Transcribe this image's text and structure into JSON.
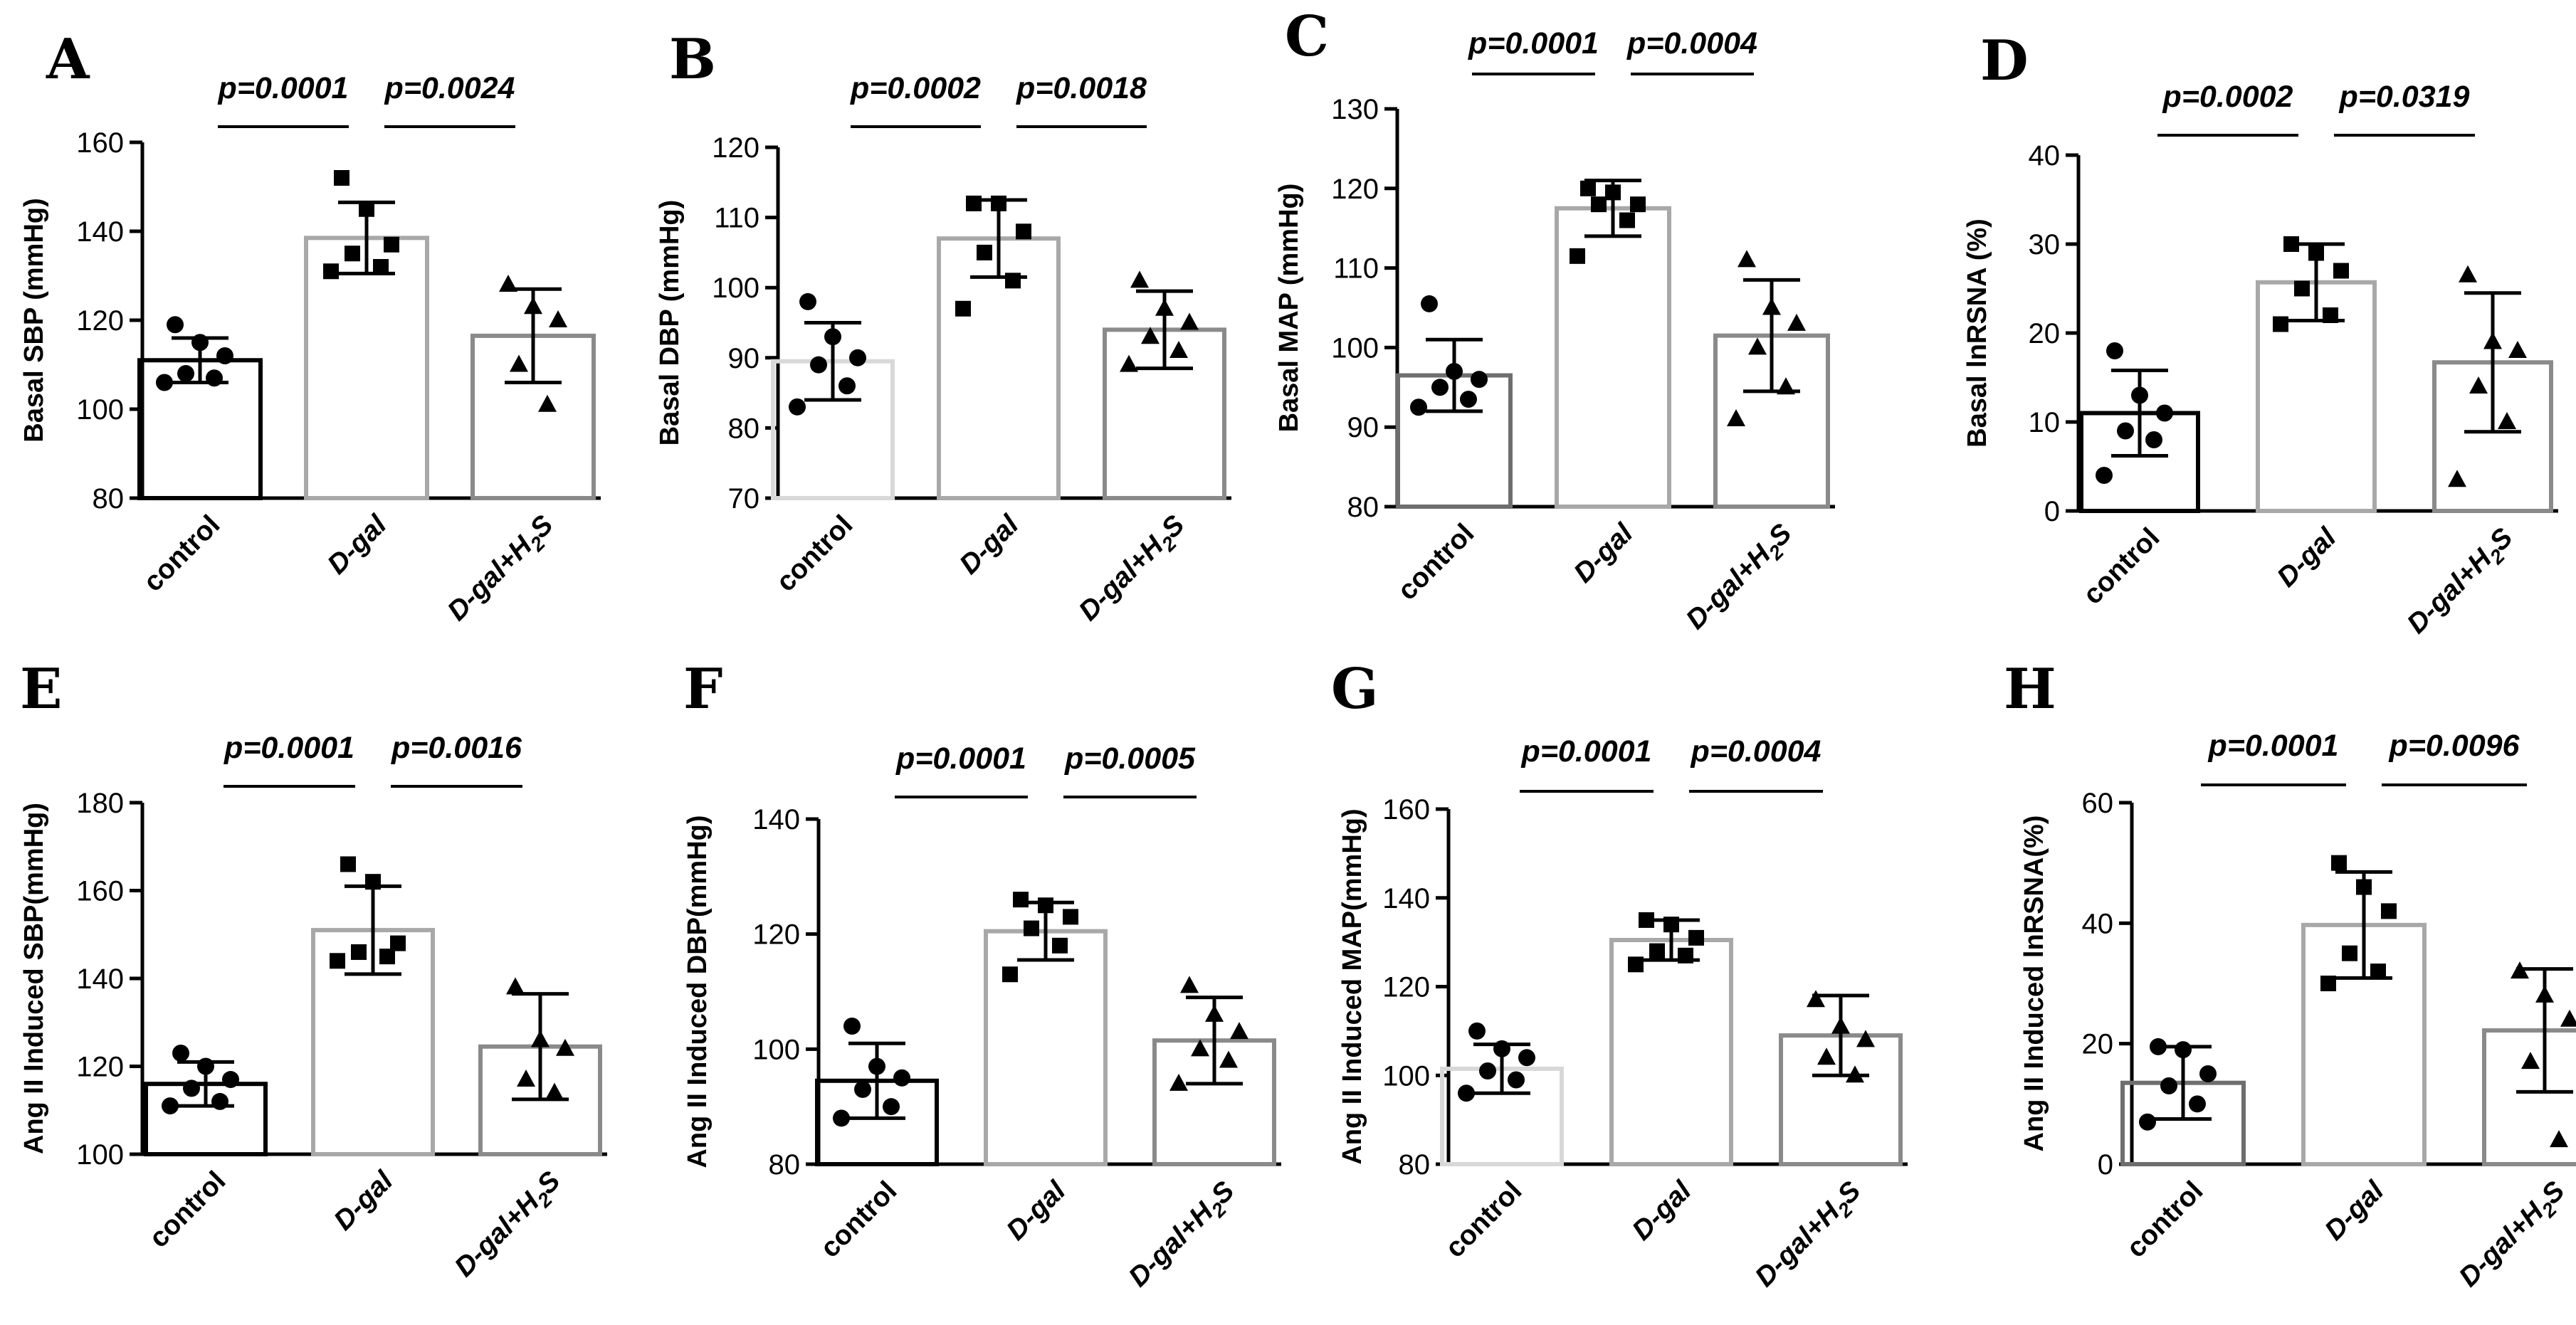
{
  "colors": {
    "control_shades": [
      "#000000",
      "#d8d8d8",
      "#6e6e6e",
      "#000000",
      "#000000",
      "#000000",
      "#d8d8d8",
      "#6e6e6e"
    ],
    "dgal": "#a8a8a8",
    "dgalh2s": "#8a8a8a"
  },
  "chart_data": [
    {
      "type": "bar",
      "letter": "A",
      "ylabel": "Basal SBP (mmHg)",
      "categories": [
        "control",
        "D-gal",
        "D-gal+H2S"
      ],
      "values": [
        111,
        138.5,
        116.5
      ],
      "errors": [
        5,
        8,
        10.5
      ],
      "points": [
        [
          119,
          115,
          112,
          108,
          107,
          106
        ],
        [
          152,
          145,
          137,
          135,
          132,
          131
        ],
        [
          128,
          123,
          120,
          110,
          101
        ]
      ],
      "markers": [
        "circle",
        "square",
        "triangle"
      ],
      "ylim": [
        80,
        160
      ],
      "yticks": [
        "80",
        "100",
        "120",
        "140",
        "160"
      ],
      "pvalues": [
        "p=0.0001",
        "p=0.0024"
      ]
    },
    {
      "type": "bar",
      "letter": "B",
      "ylabel": "Basal DBP (mmHg)",
      "categories": [
        "control",
        "D-gal",
        "D-gal+H2S"
      ],
      "values": [
        89.5,
        107,
        94
      ],
      "errors": [
        5.5,
        5.5,
        5.5
      ],
      "points": [
        [
          98,
          93,
          90,
          89,
          86,
          83
        ],
        [
          112,
          112,
          108,
          105,
          101,
          97
        ],
        [
          101,
          97,
          95,
          93,
          91,
          89
        ]
      ],
      "markers": [
        "circle",
        "square",
        "triangle"
      ],
      "ylim": [
        70,
        120
      ],
      "yticks": [
        "70",
        "80",
        "90",
        "100",
        "110",
        "120"
      ],
      "pvalues": [
        "p=0.0002",
        "p=0.0018"
      ]
    },
    {
      "type": "bar",
      "letter": "C",
      "ylabel": "Basal MAP (mmHg)",
      "categories": [
        "control",
        "D-gal",
        "D-gal+H2S"
      ],
      "values": [
        96.5,
        117.5,
        101.5
      ],
      "errors": [
        4.5,
        3.5,
        7
      ],
      "points": [
        [
          105.5,
          97,
          96,
          95,
          93.5,
          92.5
        ],
        [
          120,
          119.5,
          118,
          118,
          116,
          111.5
        ],
        [
          111,
          105,
          103,
          100,
          95,
          91
        ]
      ],
      "markers": [
        "circle",
        "square",
        "triangle"
      ],
      "ylim": [
        80,
        130
      ],
      "yticks": [
        "80",
        "90",
        "100",
        "110",
        "120",
        "130"
      ],
      "pvalues": [
        "p=0.0001",
        "p=0.0004"
      ]
    },
    {
      "type": "bar",
      "letter": "D",
      "ylabel": "Basal lnRSNA (%)",
      "categories": [
        "control",
        "D-gal",
        "D-gal+H2S"
      ],
      "values": [
        11,
        25.7,
        16.7
      ],
      "errors": [
        4.8,
        4.3,
        7.8
      ],
      "points": [
        [
          18,
          13,
          11,
          9,
          8,
          4
        ],
        [
          30,
          29,
          27,
          25,
          22,
          21
        ],
        [
          26.5,
          19,
          18,
          14,
          10,
          3.5
        ]
      ],
      "markers": [
        "circle",
        "square",
        "triangle"
      ],
      "ylim": [
        0,
        40
      ],
      "yticks": [
        "0",
        "10",
        "20",
        "30",
        "40"
      ],
      "pvalues": [
        "p=0.0002",
        "p=0.0319"
      ]
    },
    {
      "type": "bar",
      "letter": "E",
      "ylabel": "Ang II Induced SBP(mmHg)",
      "categories": [
        "control",
        "D-gal",
        "D-gal+H2S"
      ],
      "values": [
        116,
        151,
        124.5
      ],
      "errors": [
        5,
        10,
        12
      ],
      "points": [
        [
          123,
          120,
          117,
          115,
          112,
          111
        ],
        [
          166,
          162,
          148,
          146,
          145,
          144
        ],
        [
          138,
          126,
          124,
          117,
          114
        ]
      ],
      "markers": [
        "circle",
        "square",
        "triangle"
      ],
      "ylim": [
        100,
        180
      ],
      "yticks": [
        "100",
        "120",
        "140",
        "160",
        "180"
      ],
      "pvalues": [
        "p=0.0001",
        "p=0.0016"
      ]
    },
    {
      "type": "bar",
      "letter": "F",
      "ylabel": "Ang II Induced DBP(mmHg)",
      "categories": [
        "control",
        "D-gal",
        "D-gal+H2S"
      ],
      "values": [
        94.5,
        120.5,
        101.5
      ],
      "errors": [
        6.5,
        5,
        7.5
      ],
      "points": [
        [
          104,
          97,
          95,
          93,
          90,
          88
        ],
        [
          126,
          125,
          123,
          121,
          118,
          113
        ],
        [
          111,
          106,
          103,
          100,
          98,
          94
        ]
      ],
      "markers": [
        "circle",
        "square",
        "triangle"
      ],
      "ylim": [
        80,
        140
      ],
      "yticks": [
        "80",
        "100",
        "120",
        "140"
      ],
      "pvalues": [
        "p=0.0001",
        "p=0.0005"
      ]
    },
    {
      "type": "bar",
      "letter": "G",
      "ylabel": "Ang II Induced MAP(mmHg)",
      "categories": [
        "control",
        "D-gal",
        "D-gal+H2S"
      ],
      "values": [
        101.5,
        130.5,
        109
      ],
      "errors": [
        5.5,
        4.5,
        9
      ],
      "points": [
        [
          110,
          106,
          104,
          101,
          99,
          96
        ],
        [
          135,
          134,
          131,
          128,
          127,
          125
        ],
        [
          117,
          111,
          108,
          104,
          100
        ]
      ],
      "markers": [
        "circle",
        "square",
        "triangle"
      ],
      "ylim": [
        80,
        160
      ],
      "yticks": [
        "80",
        "100",
        "120",
        "140",
        "160"
      ],
      "pvalues": [
        "p=0.0001",
        "p=0.0004"
      ]
    },
    {
      "type": "bar",
      "letter": "H",
      "ylabel": "Ang II Induced lnRSNA(%)",
      "categories": [
        "control",
        "D-gal",
        "D-gal+H2S"
      ],
      "values": [
        13.5,
        39.7,
        22.2
      ],
      "errors": [
        6,
        8.8,
        10.2
      ],
      "points": [
        [
          19.5,
          19,
          15,
          13,
          10,
          7
        ],
        [
          50,
          46,
          42,
          35,
          32,
          30
        ],
        [
          32,
          28,
          24,
          17,
          4
        ]
      ],
      "markers": [
        "circle",
        "square",
        "triangle"
      ],
      "ylim": [
        0,
        60
      ],
      "yticks": [
        "0",
        "20",
        "40",
        "60"
      ],
      "pvalues": [
        "p=0.0001",
        "p=0.0096"
      ]
    }
  ]
}
